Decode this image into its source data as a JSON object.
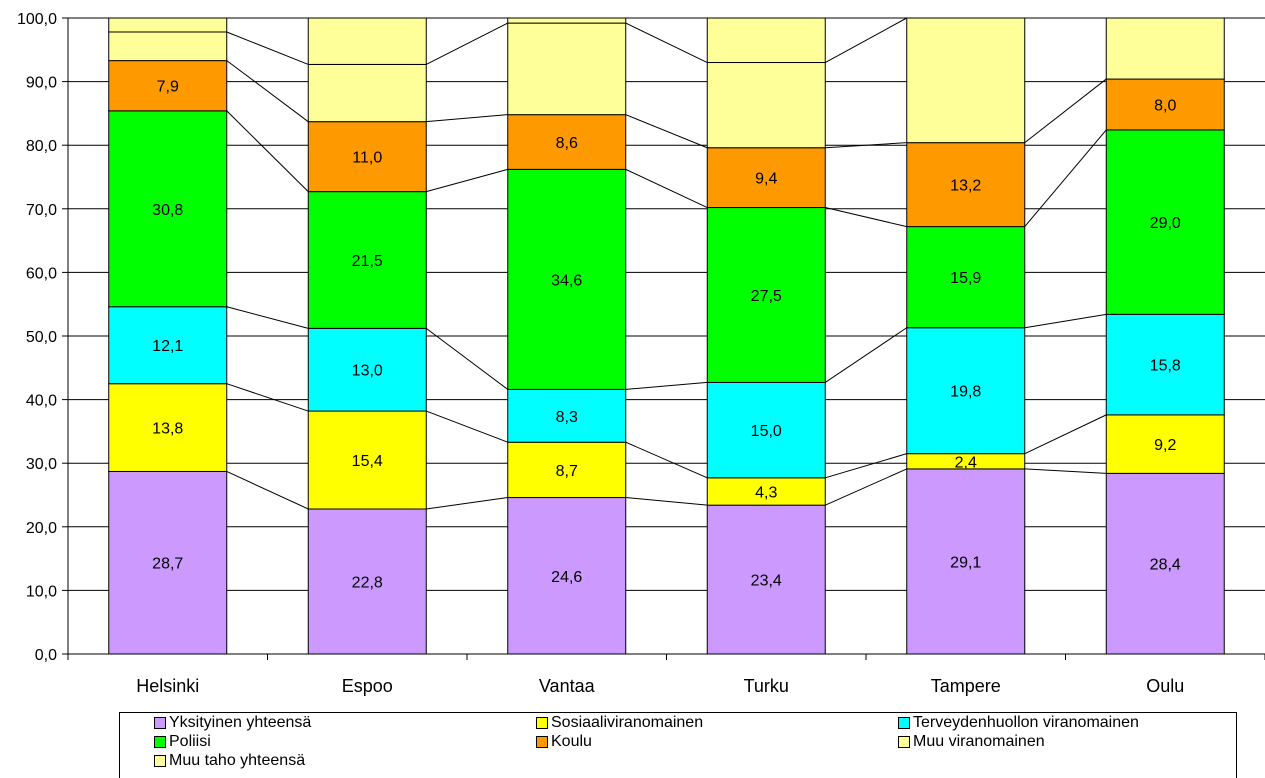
{
  "chart_data": {
    "type": "bar",
    "stacked": true,
    "categories": [
      "Helsinki",
      "Espoo",
      "Vantaa",
      "Turku",
      "Tampere",
      "Oulu"
    ],
    "ylim": [
      0,
      100
    ],
    "yticks": [
      "0,0",
      "10,0",
      "20,0",
      "30,0",
      "40,0",
      "50,0",
      "60,0",
      "70,0",
      "80,0",
      "90,0",
      "100,0"
    ],
    "grid": true,
    "series_lines": true,
    "legend_position": "bottom",
    "series": [
      {
        "name": "Yksityinen yhteensä",
        "color": "#CC99FF",
        "values": [
          28.7,
          22.8,
          24.6,
          23.4,
          29.1,
          28.4
        ],
        "labels": [
          "28,7",
          "22,8",
          "24,6",
          "23,4",
          "29,1",
          "28,4"
        ]
      },
      {
        "name": "Sosiaaliviranomainen",
        "color": "#FFFF00",
        "values": [
          13.8,
          15.4,
          8.7,
          4.3,
          2.4,
          9.2
        ],
        "labels": [
          "13,8",
          "15,4",
          "8,7",
          "4,3",
          "2,4",
          "9,2"
        ]
      },
      {
        "name": "Terveydenhuollon viranomainen",
        "color": "#00FFFF",
        "values": [
          12.1,
          13.0,
          8.3,
          15.0,
          19.8,
          15.8
        ],
        "labels": [
          "12,1",
          "13,0",
          "8,3",
          "15,0",
          "19,8",
          "15,8"
        ]
      },
      {
        "name": "Poliisi",
        "color": "#00FF00",
        "values": [
          30.8,
          21.5,
          34.6,
          27.5,
          15.9,
          29.0
        ],
        "labels": [
          "30,8",
          "21,5",
          "34,6",
          "27,5",
          "15,9",
          "29,0"
        ]
      },
      {
        "name": "Koulu",
        "color": "#FF9900",
        "values": [
          7.9,
          11.0,
          8.6,
          9.4,
          13.2,
          8.0
        ],
        "labels": [
          "7,9",
          "11,0",
          "8,6",
          "9,4",
          "13,2",
          "8,0"
        ]
      },
      {
        "name": "Muu viranomainen",
        "color": "#FFFF99",
        "values": [
          4.5,
          9.0,
          14.4,
          13.4,
          19.6,
          9.6
        ],
        "labels": [
          "",
          "",
          "",
          "",
          "",
          ""
        ]
      },
      {
        "name": "Muu taho yhteensä",
        "color": "#FFFF99",
        "values": [
          2.2,
          7.3,
          0.8,
          7.0,
          0.0,
          0.0
        ],
        "labels": [
          "",
          "",
          "",
          "",
          "",
          ""
        ]
      }
    ]
  }
}
